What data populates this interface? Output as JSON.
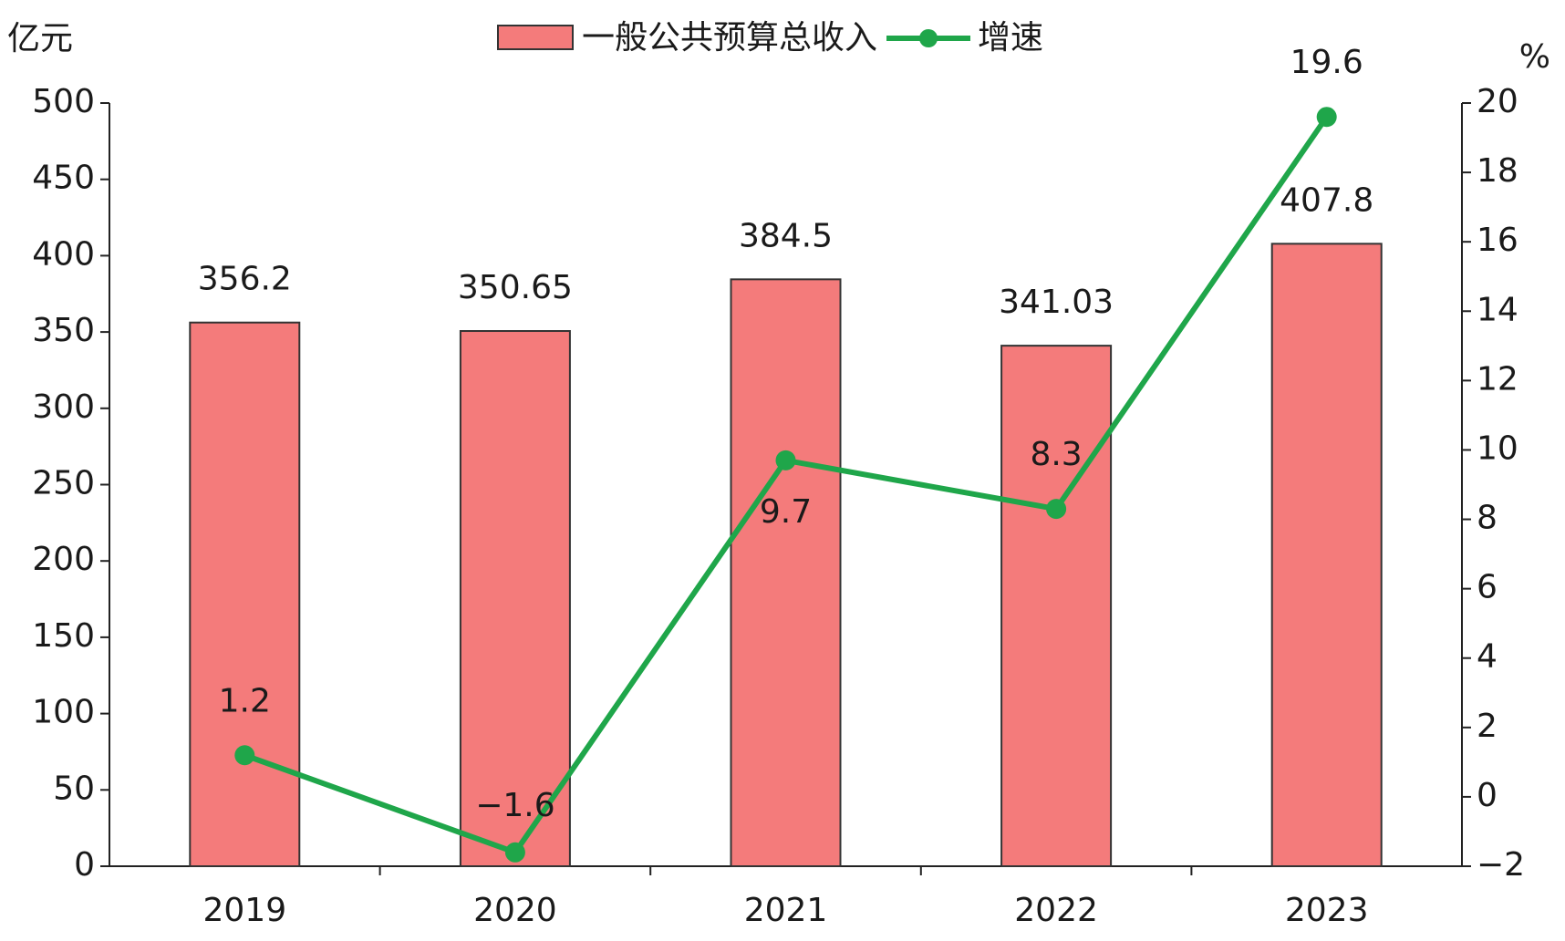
{
  "chart_data": {
    "type": "bar",
    "y_unit": "亿元",
    "y2_unit": "%",
    "categories": [
      "2019",
      "2020",
      "2021",
      "2022",
      "2023"
    ],
    "series": [
      {
        "name": "一般公共预算总收入",
        "type": "bar",
        "color": "#f47b7b",
        "values": [
          356.2,
          350.65,
          384.5,
          341.03,
          407.8
        ]
      },
      {
        "name": "增速",
        "type": "line",
        "axis": "y2",
        "color": "#1fa64a",
        "values": [
          1.2,
          -1.6,
          9.7,
          8.3,
          19.6
        ],
        "value_labels": [
          "1.2",
          "−1.6",
          "9.7",
          "8.3",
          "19.6"
        ]
      }
    ],
    "ylim": [
      0,
      500
    ],
    "yticks": [
      0,
      50,
      100,
      150,
      200,
      250,
      300,
      350,
      400,
      450,
      500
    ],
    "y2lim": [
      -2,
      20
    ],
    "y2ticks": [
      {
        "value": -2,
        "label": "−2"
      },
      0,
      2,
      4,
      6,
      8,
      10,
      12,
      14,
      16,
      18,
      20
    ],
    "grid": false,
    "legend": "top"
  }
}
